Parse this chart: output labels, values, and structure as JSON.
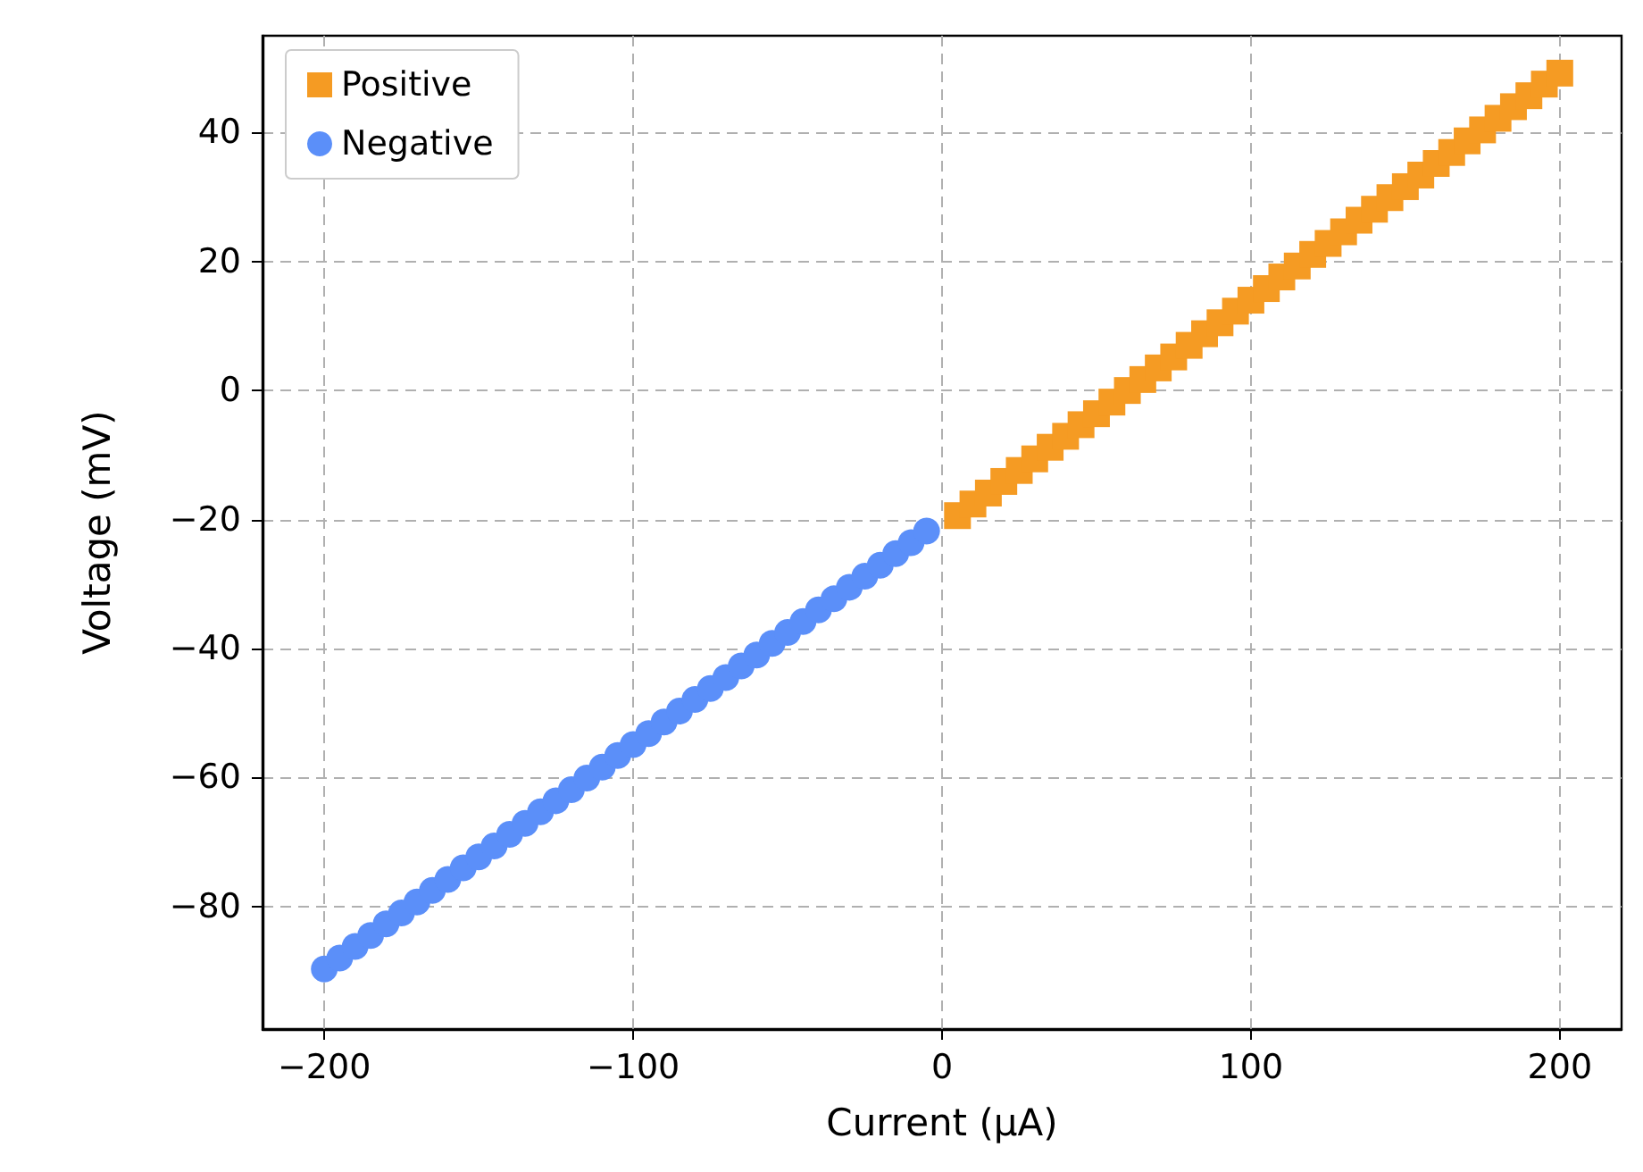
{
  "chart_data": {
    "type": "scatter",
    "xlabel": "Current (µA)",
    "ylabel": "Voltage (mV)",
    "xlim": [
      -220,
      220
    ],
    "ylim": [
      -99,
      55
    ],
    "xticks": [
      -200,
      -100,
      0,
      100,
      200
    ],
    "yticks": [
      -80,
      -60,
      -40,
      -20,
      0,
      20,
      40
    ],
    "grid": true,
    "legend": "top left",
    "series": [
      {
        "name": "Positive",
        "color": "#f59b23",
        "marker": "square",
        "x": [
          5,
          10,
          15,
          20,
          25,
          30,
          35,
          40,
          45,
          50,
          55,
          60,
          65,
          70,
          75,
          80,
          85,
          90,
          95,
          100,
          105,
          110,
          115,
          120,
          125,
          130,
          135,
          140,
          145,
          150,
          155,
          160,
          165,
          170,
          175,
          180,
          185,
          190,
          195,
          200
        ],
        "values": [
          -19.4,
          -17.6,
          -15.9,
          -14.1,
          -12.4,
          -10.6,
          -8.8,
          -7.1,
          -5.3,
          -3.6,
          -1.8,
          0.0,
          1.7,
          3.5,
          5.2,
          7.0,
          8.8,
          10.5,
          12.3,
          14.0,
          15.8,
          17.6,
          19.3,
          21.1,
          22.8,
          24.6,
          26.4,
          28.1,
          29.9,
          31.6,
          33.4,
          35.2,
          36.9,
          38.7,
          40.4,
          42.2,
          44.0,
          45.7,
          47.5,
          49.2
        ]
      },
      {
        "name": "Negative",
        "color": "#5b8ff9",
        "marker": "circle",
        "x": [
          -200,
          -195,
          -190,
          -185,
          -180,
          -175,
          -170,
          -165,
          -160,
          -155,
          -150,
          -145,
          -140,
          -135,
          -130,
          -125,
          -120,
          -115,
          -110,
          -105,
          -100,
          -95,
          -90,
          -85,
          -80,
          -75,
          -70,
          -65,
          -60,
          -55,
          -50,
          -45,
          -40,
          -35,
          -30,
          -25,
          -20,
          -15,
          -10,
          -5
        ],
        "values": [
          -89.7,
          -88.0,
          -86.2,
          -84.5,
          -82.7,
          -81.0,
          -79.3,
          -77.5,
          -75.8,
          -74.0,
          -72.3,
          -70.6,
          -68.8,
          -67.1,
          -65.3,
          -63.6,
          -61.9,
          -60.1,
          -58.4,
          -56.6,
          -54.9,
          -53.2,
          -51.4,
          -49.7,
          -47.9,
          -46.2,
          -44.5,
          -42.7,
          -41.0,
          -39.2,
          -37.5,
          -35.8,
          -34.0,
          -32.3,
          -30.5,
          -28.8,
          -27.1,
          -25.3,
          -23.6,
          -21.8
        ]
      }
    ]
  }
}
